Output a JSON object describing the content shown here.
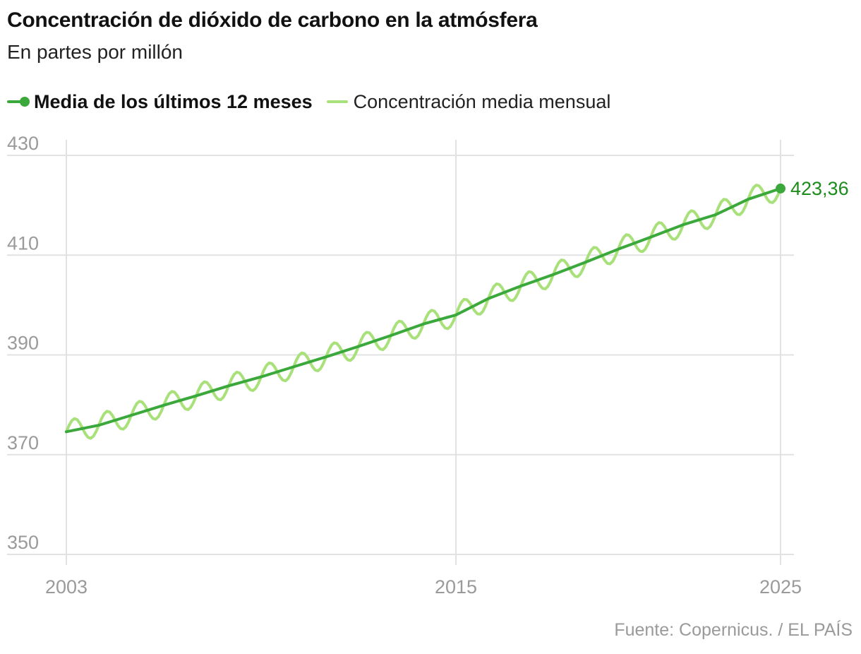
{
  "colors": {
    "mean_line": "#3aa83a",
    "monthly_line": "#a8e07a",
    "end_label": "#1c8c1c",
    "grid": "#e2e2e2",
    "tick": "#9a9a9a"
  },
  "legend": {
    "mean_label": "Media de los últimos 12 meses",
    "monthly_label": "Concentración media mensual"
  },
  "source": "Fuente: Copernicus. / EL PAÍS",
  "chart_data": {
    "type": "line",
    "title": "Concentración de dióxido de carbono en la atmósfera",
    "subtitle": "En partes por millón",
    "xlabel": "",
    "ylabel": "",
    "xlim": [
      2003,
      2025
    ],
    "ylim": [
      350,
      430
    ],
    "y_ticks": [
      430,
      410,
      390,
      370,
      350
    ],
    "x_ticks": [
      2003,
      2015,
      2025
    ],
    "grid": true,
    "legend_position": "top-left",
    "series": [
      {
        "name": "Media de los últimos 12 meses",
        "x": [
          2003,
          2004,
          2005,
          2006,
          2007,
          2008,
          2009,
          2010,
          2011,
          2012,
          2013,
          2014,
          2015,
          2016,
          2017,
          2018,
          2019,
          2020,
          2021,
          2022,
          2023,
          2024,
          2025
        ],
        "values": [
          374.6,
          375.9,
          377.9,
          379.9,
          381.8,
          383.8,
          385.6,
          387.6,
          389.6,
          391.7,
          393.9,
          396.2,
          398.0,
          401.3,
          403.8,
          406.1,
          408.6,
          411.2,
          413.6,
          416.1,
          418.1,
          421.2,
          423.36
        ],
        "end_label": "423,36"
      },
      {
        "name": "Concentración media mensual",
        "seasonal_amplitude": 2.3,
        "note": "Oscilación estacional alrededor de la media de 12 meses"
      }
    ]
  }
}
